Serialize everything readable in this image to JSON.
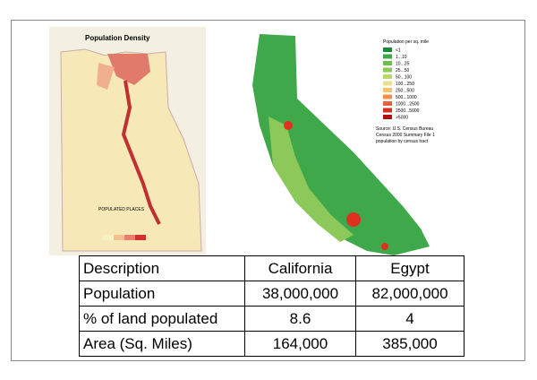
{
  "egypt_map": {
    "title": "Population Density",
    "caption": "POPULATED PLACES"
  },
  "california_map": {
    "legend": {
      "title": "Population per sq. mile",
      "items": [
        "<1",
        "1...10",
        "10...25",
        "25...50",
        "50...100",
        "100...250",
        "250...500",
        "500...1000",
        "1000...2500",
        "2500...5000",
        ">5000"
      ]
    },
    "source": [
      "Source: U.S. Census Bureau",
      "Census 2000 Summary File 1",
      "population by census tract"
    ]
  },
  "table": {
    "header": [
      "Description",
      "California",
      "Egypt"
    ],
    "rows": [
      [
        "Population",
        "38,000,000",
        "82,000,000"
      ],
      [
        "% of land populated",
        "8.6",
        "4"
      ],
      [
        "Area (Sq. Miles)",
        "164,000",
        "385,000"
      ]
    ]
  }
}
